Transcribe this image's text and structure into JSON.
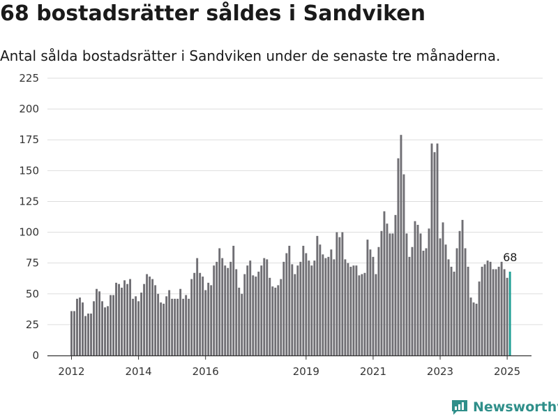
{
  "title": "68 bostadsrätter såldes i Sandviken",
  "subtitle": "Antal sålda bostadsrätter i Sandviken under de senaste tre månaderna.",
  "brand": "Newsworthy",
  "colors": {
    "bar": "#6f6e73",
    "highlight": "#1f9e94",
    "grid": "#dddddd",
    "axis": "#333333",
    "brand": "#2f8f8a"
  },
  "chart_data": {
    "type": "bar",
    "ylim": [
      0,
      225
    ],
    "yticks": [
      0,
      25,
      50,
      75,
      100,
      125,
      150,
      175,
      200,
      225
    ],
    "x_start": "2012-01",
    "x_end": "2025-01",
    "xticks": [
      2012,
      2014,
      2016,
      2019,
      2021,
      2023,
      2025
    ],
    "highlight_label": "68",
    "grid": true,
    "values": [
      36,
      36,
      46,
      47,
      43,
      32,
      34,
      34,
      44,
      54,
      52,
      44,
      39,
      40,
      49,
      49,
      59,
      58,
      55,
      61,
      58,
      62,
      46,
      48,
      44,
      51,
      58,
      66,
      64,
      62,
      57,
      50,
      43,
      42,
      48,
      53,
      46,
      46,
      46,
      54,
      46,
      49,
      46,
      62,
      67,
      79,
      67,
      64,
      53,
      59,
      57,
      73,
      76,
      87,
      79,
      73,
      71,
      76,
      89,
      70,
      55,
      50,
      66,
      73,
      77,
      65,
      64,
      68,
      73,
      79,
      78,
      63,
      56,
      55,
      57,
      62,
      76,
      83,
      89,
      74,
      66,
      73,
      76,
      89,
      83,
      77,
      73,
      77,
      97,
      90,
      82,
      79,
      80,
      86,
      78,
      100,
      96,
      100,
      78,
      75,
      72,
      73,
      73,
      65,
      66,
      67,
      94,
      86,
      80,
      66,
      88,
      101,
      117,
      107,
      99,
      99,
      114,
      160,
      179,
      147,
      99,
      80,
      88,
      109,
      106,
      99,
      85,
      87,
      103,
      172,
      165,
      172,
      95,
      108,
      90,
      78,
      72,
      68,
      87,
      101,
      110,
      87,
      72,
      47,
      43,
      42,
      60,
      72,
      74,
      77,
      76,
      70,
      70,
      72,
      76,
      70,
      63,
      68
    ]
  }
}
